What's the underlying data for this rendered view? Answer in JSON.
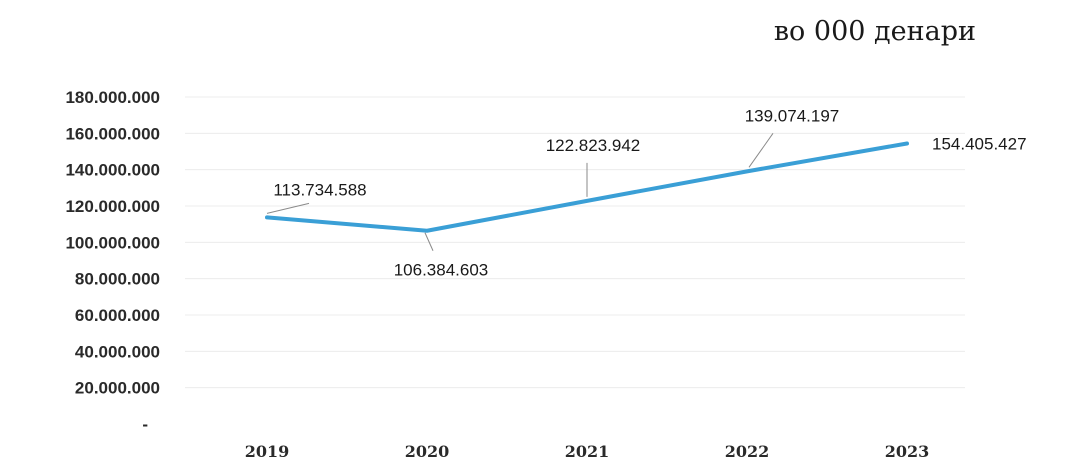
{
  "unit_label": "во 000 денари",
  "chart_data": {
    "type": "line",
    "title": "",
    "xlabel": "",
    "ylabel": "",
    "categories": [
      "2019",
      "2020",
      "2021",
      "2022",
      "2023"
    ],
    "series": [
      {
        "values": [
          113734588,
          106384603,
          122823942,
          139074197,
          154405427
        ],
        "color": "#3a9fd6"
      }
    ],
    "data_labels": [
      "113.734.588",
      "106.384.603",
      "122.823.942",
      "139.074.197",
      "154.405.427"
    ],
    "y_ticks": [
      0,
      20000000,
      40000000,
      60000000,
      80000000,
      100000000,
      120000000,
      140000000,
      160000000,
      180000000
    ],
    "y_tick_labels": [
      "-",
      "20.000.000",
      "40.000.000",
      "60.000.000",
      "80.000.000",
      "100.000.000",
      "120.000.000",
      "140.000.000",
      "160.000.000",
      "180.000.000"
    ],
    "ylim": [
      0,
      180000000
    ],
    "grid": true,
    "legend": false
  }
}
